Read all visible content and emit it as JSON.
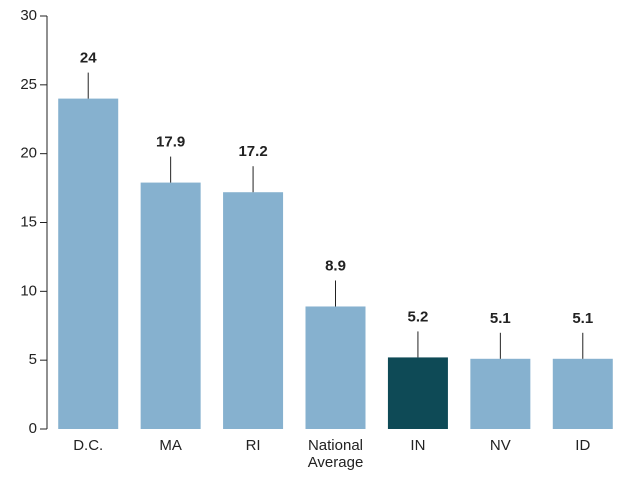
{
  "chart_data": {
    "type": "bar",
    "categories": [
      "D.C.",
      "MA",
      "RI",
      "National Average",
      "IN",
      "NV",
      "ID"
    ],
    "values": [
      24,
      17.9,
      17.2,
      8.9,
      5.2,
      5.1,
      5.1
    ],
    "colors": [
      "#86b1cf",
      "#86b1cf",
      "#86b1cf",
      "#86b1cf",
      "#0e4a56",
      "#86b1cf",
      "#86b1cf"
    ],
    "ylim": [
      0,
      30
    ],
    "yticks": [
      0,
      5,
      10,
      15,
      20,
      25,
      30
    ],
    "grid": false
  }
}
